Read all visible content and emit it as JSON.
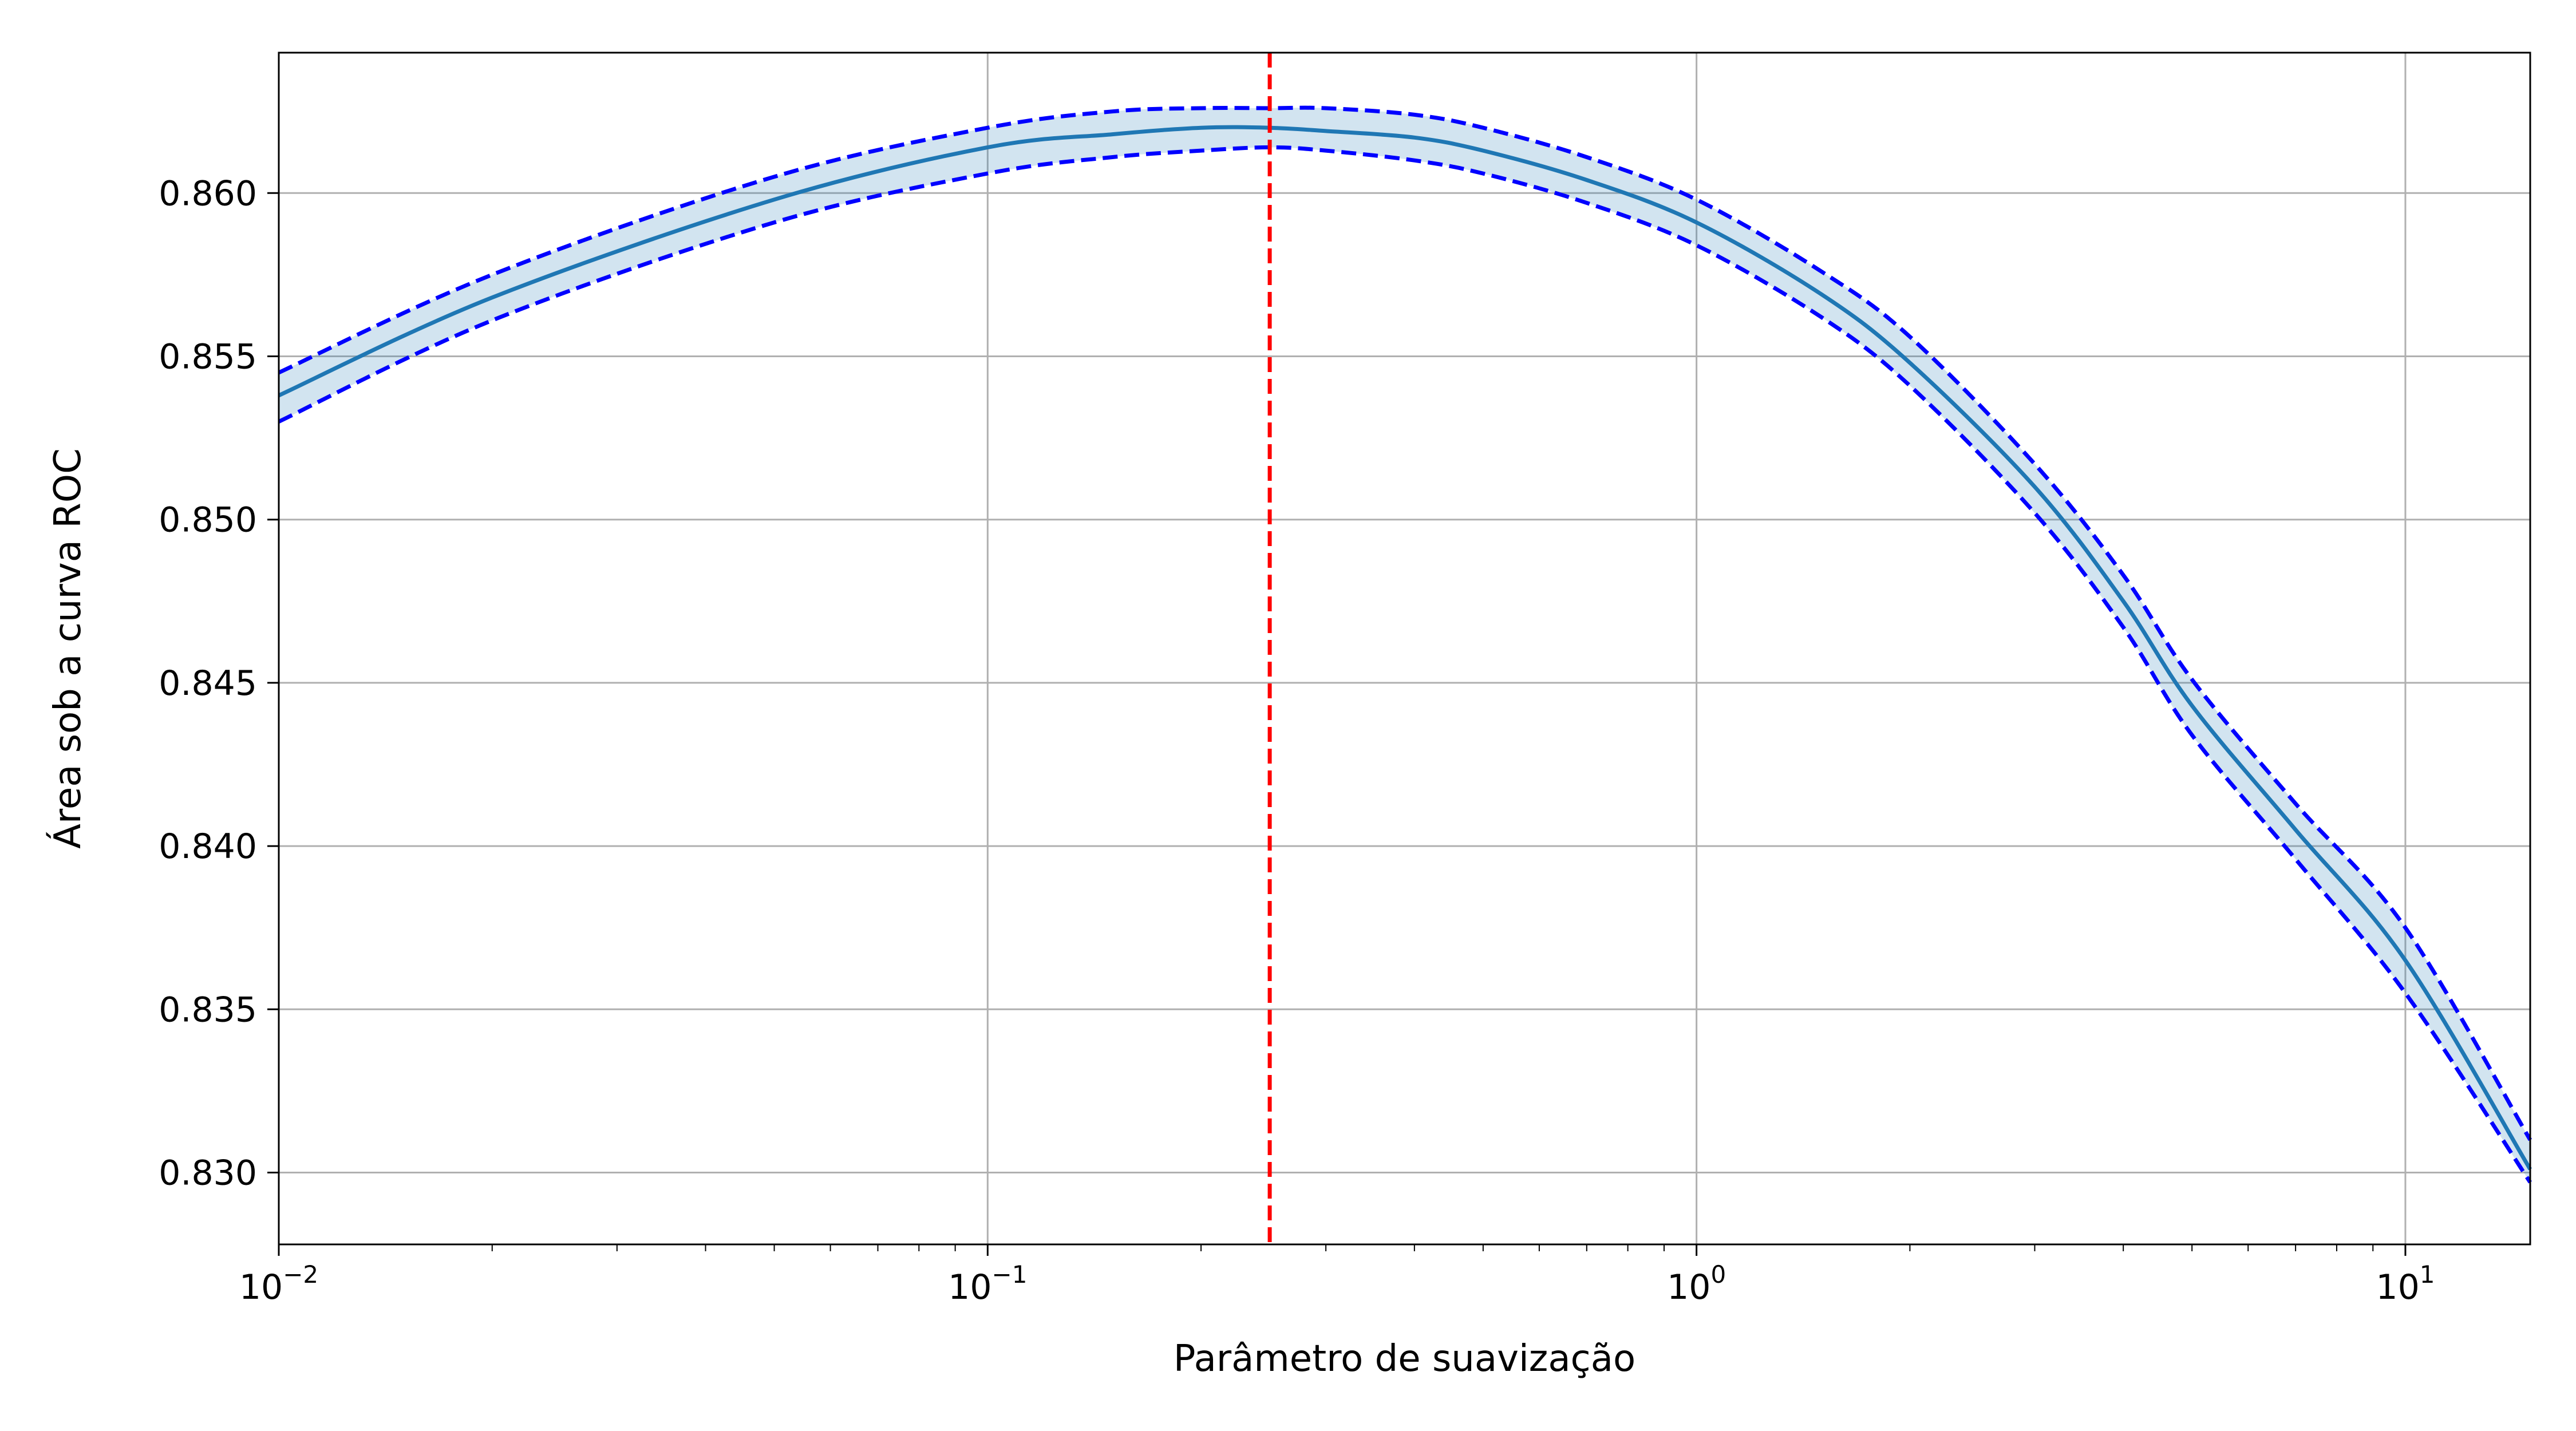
{
  "chart_data": {
    "type": "line",
    "xlabel": "Parâmetro de suavização",
    "ylabel": "Área sob a curva ROC",
    "xscale": "log",
    "xlim": [
      0.01,
      15
    ],
    "ylim": [
      0.8278,
      0.8643
    ],
    "grid": true,
    "x_ticks": [
      {
        "value": 0.01,
        "base": "10",
        "exp": "−2"
      },
      {
        "value": 0.1,
        "base": "10",
        "exp": "−1"
      },
      {
        "value": 1,
        "base": "10",
        "exp": "0"
      },
      {
        "value": 10,
        "base": "10",
        "exp": "1"
      }
    ],
    "y_ticks": [
      {
        "value": 0.83,
        "label": "0.830"
      },
      {
        "value": 0.835,
        "label": "0.835"
      },
      {
        "value": 0.84,
        "label": "0.840"
      },
      {
        "value": 0.845,
        "label": "0.845"
      },
      {
        "value": 0.85,
        "label": "0.850"
      },
      {
        "value": 0.855,
        "label": "0.855"
      },
      {
        "value": 0.86,
        "label": "0.860"
      }
    ],
    "best_x": 0.25,
    "colors": {
      "mean": "#1f77b4",
      "band": "#1f77b4",
      "bounds": "#0000ff",
      "marker": "#ff0000"
    },
    "series": [
      {
        "role": "mean",
        "x": [
          0.01,
          0.02,
          0.05,
          0.1,
          0.15,
          0.2,
          0.25,
          0.3,
          0.4,
          0.5,
          0.7,
          1.0,
          1.5,
          2.0,
          3.0,
          4.0,
          5.0,
          7.0,
          10.0,
          15.0
        ],
        "y": [
          0.8538,
          0.8568,
          0.8598,
          0.8614,
          0.8618,
          0.862,
          0.862,
          0.8619,
          0.8617,
          0.8613,
          0.8604,
          0.8591,
          0.8569,
          0.8548,
          0.851,
          0.8475,
          0.8443,
          0.8405,
          0.8365,
          0.8301
        ]
      },
      {
        "role": "upper",
        "x": [
          0.01,
          0.02,
          0.05,
          0.1,
          0.15,
          0.2,
          0.25,
          0.3,
          0.4,
          0.5,
          0.7,
          1.0,
          1.5,
          2.0,
          3.0,
          4.0,
          5.0,
          7.0,
          10.0,
          15.0
        ],
        "y": [
          0.8545,
          0.8575,
          0.8605,
          0.862,
          0.8625,
          0.8626,
          0.8626,
          0.8626,
          0.8624,
          0.862,
          0.8611,
          0.8598,
          0.8576,
          0.8556,
          0.8517,
          0.8483,
          0.8451,
          0.8413,
          0.8375,
          0.831
        ]
      },
      {
        "role": "lower",
        "x": [
          0.01,
          0.02,
          0.05,
          0.1,
          0.15,
          0.2,
          0.25,
          0.3,
          0.4,
          0.5,
          0.7,
          1.0,
          1.5,
          2.0,
          3.0,
          4.0,
          5.0,
          7.0,
          10.0,
          15.0
        ],
        "y": [
          0.853,
          0.8561,
          0.8591,
          0.8606,
          0.8611,
          0.8613,
          0.8614,
          0.8613,
          0.861,
          0.8606,
          0.8597,
          0.8584,
          0.8562,
          0.8541,
          0.8502,
          0.8467,
          0.8434,
          0.8396,
          0.8355,
          0.8297
        ]
      }
    ]
  }
}
